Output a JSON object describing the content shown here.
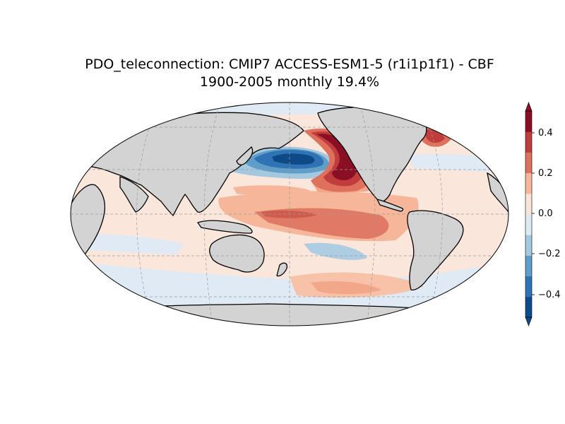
{
  "title": {
    "line1": "PDO_teleconnection: CMIP7 ACCESS-ESM1-5 (r1i1p1f1) - CBF",
    "line2": "1900-2005 monthly 19.4%"
  },
  "map": {
    "projection": "Robinson",
    "central_longitude": 180,
    "land_color": "#d3d3d3",
    "coastline_color": "#000000",
    "gridlines": true
  },
  "colorbar": {
    "ticks": [
      "0.4",
      "0.2",
      "0.0",
      "−0.2",
      "−0.4"
    ],
    "levels": [
      -0.5,
      -0.4,
      -0.3,
      -0.2,
      -0.1,
      0.0,
      0.1,
      0.2,
      0.3,
      0.4,
      0.5
    ],
    "colors": [
      "#0e4a88",
      "#2f73b5",
      "#5e9ec9",
      "#a3c8e0",
      "#dceaf3",
      "#fae5da",
      "#f6b69a",
      "#e0705e",
      "#c03c3d",
      "#8a0f24"
    ],
    "extend": "both"
  }
}
